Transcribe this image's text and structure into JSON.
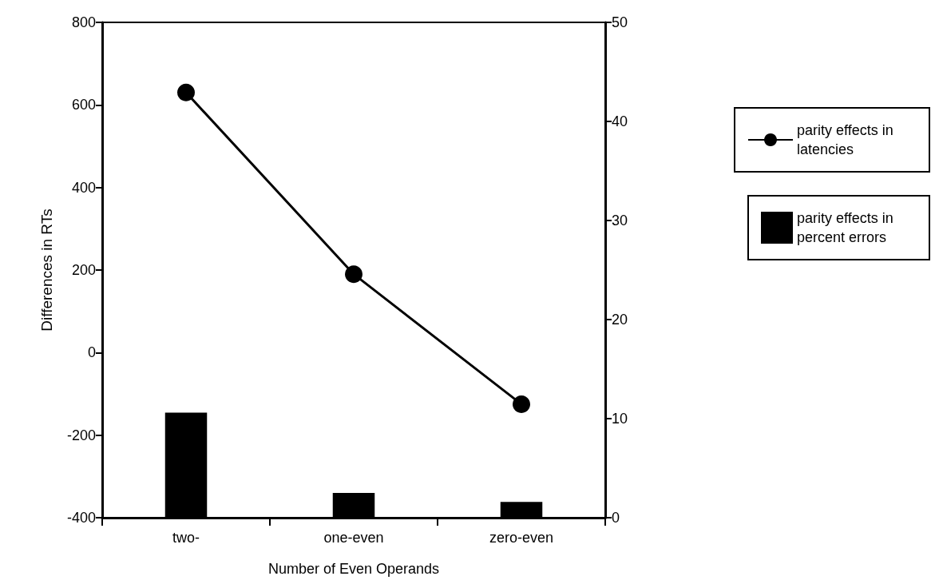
{
  "chart_data": {
    "type": "bar",
    "xlabel": "Number of Even Operands",
    "ylabel": "Differences in RTs",
    "categories": [
      "two-",
      "one-even",
      "zero-even"
    ],
    "series": [
      {
        "name": "parity effects in latencies",
        "type": "line",
        "color": "#000000",
        "values": [
          630,
          190,
          -125
        ],
        "marker": "circle"
      },
      {
        "name": "parity effects in percent errors",
        "axis": "y2",
        "color": "#000000",
        "values": [
          10.6,
          2.5,
          1.6
        ]
      }
    ],
    "ylim": [
      -400,
      800
    ],
    "yticks": [
      -400,
      -200,
      0,
      200,
      400,
      600,
      800
    ],
    "y2lim": [
      0,
      50
    ],
    "y2ticks": [
      0,
      10,
      20,
      30,
      40,
      50
    ],
    "legend": "right"
  }
}
